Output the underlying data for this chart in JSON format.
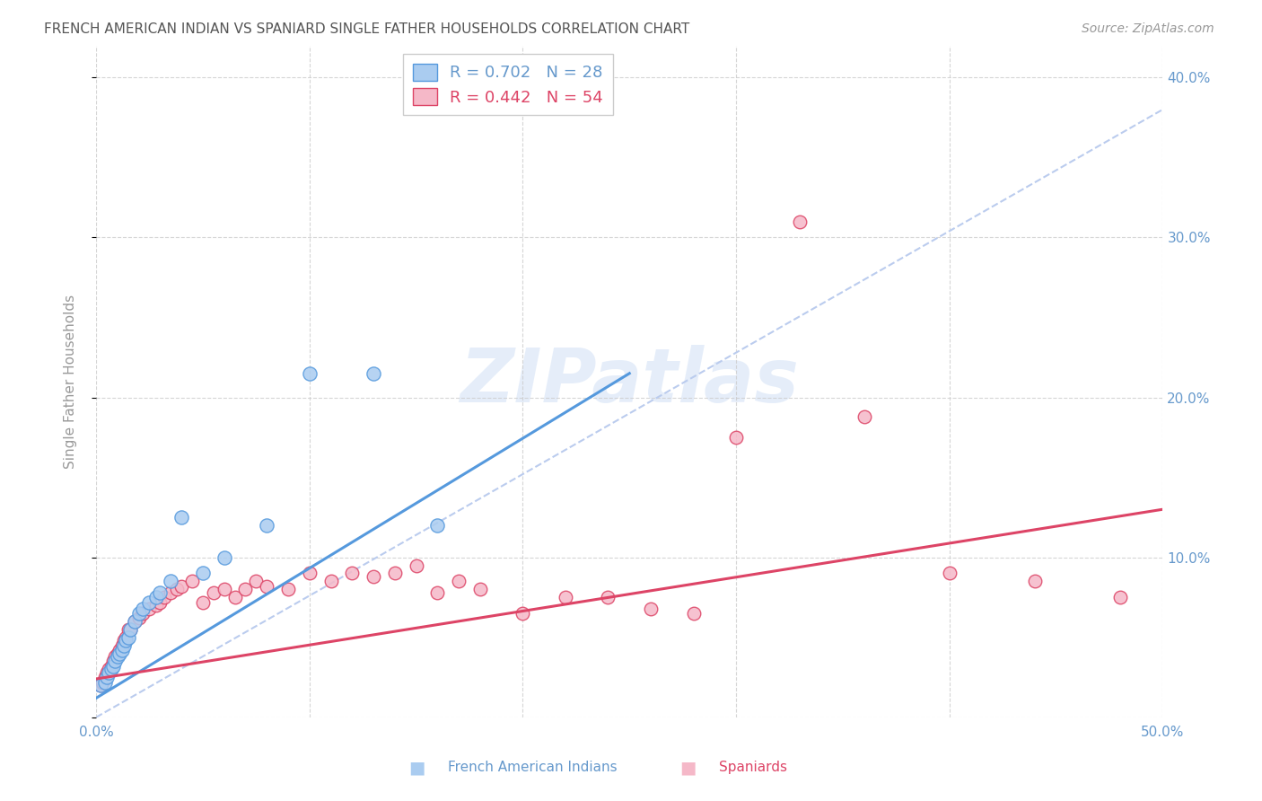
{
  "title": "FRENCH AMERICAN INDIAN VS SPANIARD SINGLE FATHER HOUSEHOLDS CORRELATION CHART",
  "source": "Source: ZipAtlas.com",
  "ylabel": "Single Father Households",
  "xlim": [
    0.0,
    0.5
  ],
  "ylim": [
    0.0,
    0.42
  ],
  "watermark": "ZIPatlas",
  "blue_color": "#aaccf0",
  "pink_color": "#f5b8c8",
  "blue_line_color": "#5599dd",
  "pink_line_color": "#dd4466",
  "dashed_line_color": "#bbccee",
  "axis_color": "#6699cc",
  "grid_color": "#cccccc",
  "fi_x": [
    0.002,
    0.004,
    0.005,
    0.006,
    0.007,
    0.008,
    0.009,
    0.01,
    0.011,
    0.012,
    0.013,
    0.014,
    0.015,
    0.016,
    0.018,
    0.02,
    0.022,
    0.025,
    0.028,
    0.03,
    0.035,
    0.04,
    0.05,
    0.06,
    0.08,
    0.1,
    0.13,
    0.16
  ],
  "fi_y": [
    0.02,
    0.022,
    0.025,
    0.028,
    0.03,
    0.032,
    0.035,
    0.038,
    0.04,
    0.042,
    0.045,
    0.048,
    0.05,
    0.055,
    0.06,
    0.065,
    0.068,
    0.072,
    0.075,
    0.078,
    0.085,
    0.125,
    0.09,
    0.1,
    0.12,
    0.215,
    0.215,
    0.12
  ],
  "sp_x": [
    0.002,
    0.003,
    0.004,
    0.005,
    0.006,
    0.007,
    0.008,
    0.009,
    0.01,
    0.011,
    0.012,
    0.013,
    0.014,
    0.015,
    0.016,
    0.018,
    0.02,
    0.022,
    0.025,
    0.028,
    0.03,
    0.032,
    0.035,
    0.038,
    0.04,
    0.045,
    0.05,
    0.055,
    0.06,
    0.065,
    0.07,
    0.075,
    0.08,
    0.09,
    0.1,
    0.11,
    0.12,
    0.13,
    0.14,
    0.15,
    0.16,
    0.17,
    0.18,
    0.2,
    0.22,
    0.24,
    0.26,
    0.28,
    0.3,
    0.33,
    0.36,
    0.4,
    0.44,
    0.48
  ],
  "sp_y": [
    0.02,
    0.022,
    0.025,
    0.028,
    0.03,
    0.032,
    0.035,
    0.038,
    0.04,
    0.042,
    0.045,
    0.048,
    0.05,
    0.055,
    0.055,
    0.06,
    0.062,
    0.065,
    0.068,
    0.07,
    0.072,
    0.075,
    0.078,
    0.08,
    0.082,
    0.085,
    0.072,
    0.078,
    0.08,
    0.075,
    0.08,
    0.085,
    0.082,
    0.08,
    0.09,
    0.085,
    0.09,
    0.088,
    0.09,
    0.095,
    0.078,
    0.085,
    0.08,
    0.065,
    0.075,
    0.075,
    0.068,
    0.065,
    0.175,
    0.31,
    0.188,
    0.09,
    0.085,
    0.075
  ],
  "blue_line_x0": 0.0,
  "blue_line_y0": 0.012,
  "blue_line_x1": 0.25,
  "blue_line_y1": 0.215,
  "pink_line_x0": 0.0,
  "pink_line_y0": 0.024,
  "pink_line_x1": 0.5,
  "pink_line_y1": 0.13,
  "dash_line_x0": 0.0,
  "dash_line_y0": 0.0,
  "dash_line_x1": 0.5,
  "dash_line_y1": 0.38
}
